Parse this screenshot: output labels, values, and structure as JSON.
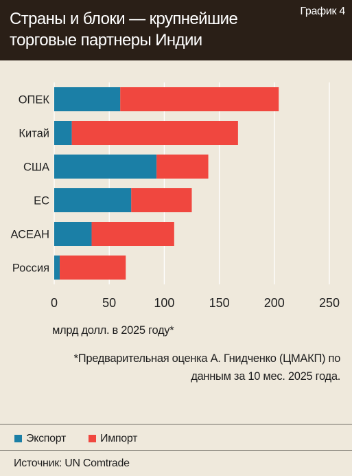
{
  "header": {
    "title": "Страны и блоки — крупнейшие торговые партнеры Индии",
    "tag": "График 4"
  },
  "chart_data": {
    "type": "bar",
    "orientation": "horizontal",
    "stacked": true,
    "categories": [
      "ОПЕК",
      "Китай",
      "США",
      "ЕС",
      "АСЕАН",
      "Россия"
    ],
    "series": [
      {
        "name": "Экспорт",
        "color": "#1b7fa6",
        "values": [
          60,
          16,
          93,
          70,
          34,
          5
        ]
      },
      {
        "name": "Импорт",
        "color": "#f0473f",
        "values": [
          144,
          151,
          47,
          55,
          75,
          60
        ]
      }
    ],
    "xlim": [
      0,
      250
    ],
    "xticks": [
      "0",
      "50",
      "100",
      "150",
      "200",
      "250"
    ],
    "grid": true,
    "xlabel": "млрд долл. в 2025 году*"
  },
  "note": "*Предварительная оценка А. Гнидченко (ЦМАКП) по данным за 10 мес. 2025 года.",
  "legend": {
    "export_label": "Экспорт",
    "import_label": "Импорт",
    "export_color": "#1b7fa6",
    "import_color": "#f0473f"
  },
  "source": "Источник: UN Comtrade"
}
